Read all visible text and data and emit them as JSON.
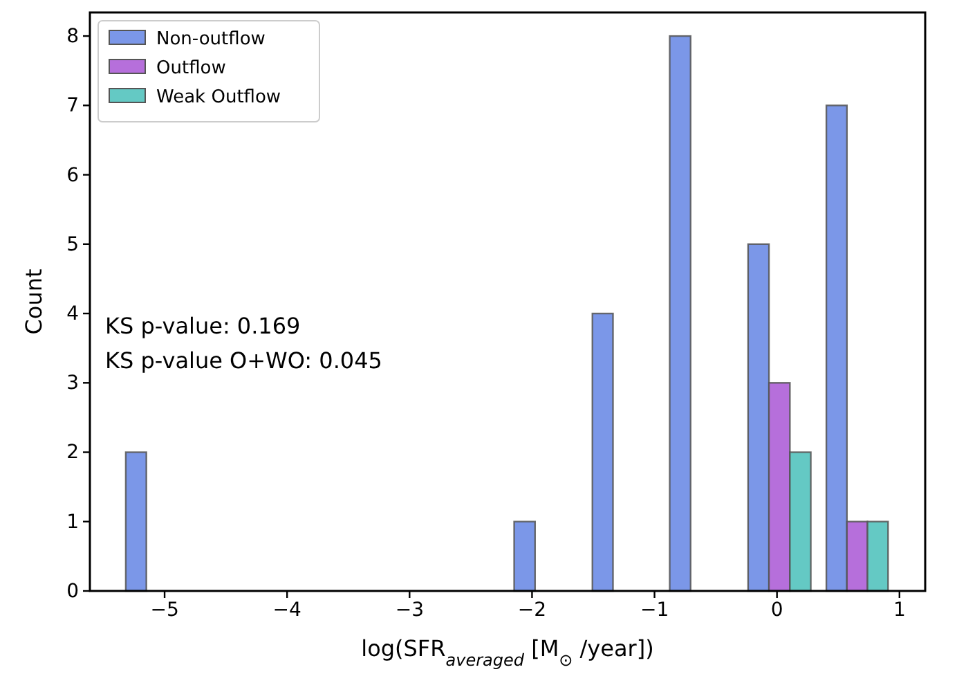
{
  "chart_data": {
    "type": "histogram",
    "xlabel": "log(SFR$_{averaged}$ [M$_{⊙}$ /year])",
    "ylabel": "Count",
    "bins": [
      -5.38,
      -4.75,
      -2.21,
      -1.57,
      -0.94,
      -0.3,
      0.34,
      0.97
    ],
    "series": [
      {
        "name": "Non-outflow",
        "color": "#7b97e8",
        "values": [
          2,
          0,
          1,
          4,
          8,
          5,
          7
        ]
      },
      {
        "name": "Outflow",
        "color": "#b66fdb",
        "values": [
          0,
          0,
          0,
          0,
          0,
          3,
          1
        ]
      },
      {
        "name": "Weak Outflow",
        "color": "#64c9c4",
        "values": [
          0,
          0,
          0,
          0,
          0,
          2,
          1
        ]
      }
    ],
    "xlim": [
      -5.61,
      1.21
    ],
    "ylim": [
      0,
      8.34
    ],
    "xticks": [
      -5,
      -4,
      -3,
      -2,
      -1,
      0,
      1
    ],
    "yticks": [
      0,
      1,
      2,
      3,
      4,
      5,
      6,
      7,
      8
    ],
    "legend": "top left",
    "grid": false,
    "annotations": [
      "KS p-value: 0.169",
      "KS p-value O+WO: 0.045"
    ]
  }
}
